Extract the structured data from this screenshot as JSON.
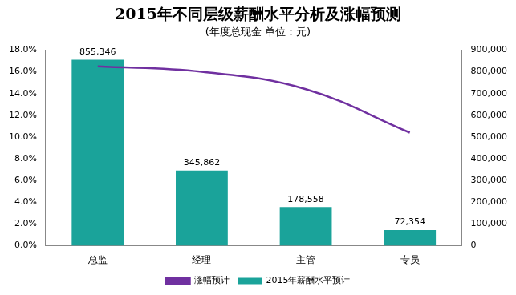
{
  "chart_data": {
    "type": "bar",
    "title": "2015年不同层级薪酬水平分析及涨幅预测",
    "subtitle": "(年度总现金 单位：元)",
    "categories": [
      "总监",
      "经理",
      "主管",
      "专员"
    ],
    "series": [
      {
        "name": "2015年薪酬水平预计",
        "type": "bar",
        "axis": "y2",
        "color": "#1aa39a",
        "values": [
          855346,
          345862,
          178558,
          72354
        ],
        "value_labels": [
          "855,346",
          "345,862",
          "178,558",
          "72,354"
        ],
        "data_labels": true
      },
      {
        "name": "涨幅预计",
        "type": "line",
        "color": "#7030a0",
        "marker": "none",
        "line_style": "solid",
        "values": [
          16.5,
          16.0,
          14.4,
          10.4
        ]
      }
    ],
    "ylim": [
      0,
      18
    ],
    "yticks": [
      {
        "value": 0,
        "label": "0.0%"
      },
      {
        "value": 2,
        "label": "2.0%"
      },
      {
        "value": 4,
        "label": "4.0%"
      },
      {
        "value": 6,
        "label": "6.0%"
      },
      {
        "value": 8,
        "label": "8.0%"
      },
      {
        "value": 10,
        "label": "10.0%"
      },
      {
        "value": 12,
        "label": "12.0%"
      },
      {
        "value": 14,
        "label": "14.0%"
      },
      {
        "value": 16,
        "label": "16.0%"
      },
      {
        "value": 18,
        "label": "18.0%"
      }
    ],
    "y2lim": [
      0,
      900000
    ],
    "y2ticks": [
      0,
      {
        "value": 100000,
        "label": "100,000"
      },
      {
        "value": 200000,
        "label": "200,000"
      },
      {
        "value": 300000,
        "label": "300,000"
      },
      {
        "value": 400000,
        "label": "400,000"
      },
      {
        "value": 500000,
        "label": "500,000"
      },
      {
        "value": 600000,
        "label": "600,000"
      },
      {
        "value": 700000,
        "label": "700,000"
      },
      {
        "value": 800000,
        "label": "800,000"
      },
      {
        "value": 900000,
        "label": "900,000"
      }
    ],
    "grid": false,
    "legend": "bottom"
  }
}
